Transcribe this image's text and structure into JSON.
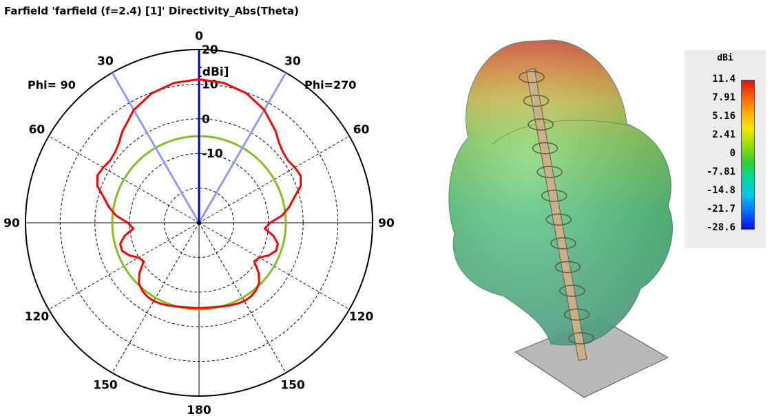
{
  "title": "Farfield 'farfield (f=2.4) [1]' Directivity_Abs(Theta)",
  "polar": {
    "angle_labels": [
      {
        "text": "0",
        "deg": 0
      },
      {
        "text": "30",
        "deg": 30
      },
      {
        "text": "30",
        "deg": -30
      },
      {
        "text": "60",
        "deg": 60
      },
      {
        "text": "60",
        "deg": -60
      },
      {
        "text": "90",
        "deg": 90
      },
      {
        "text": "90",
        "deg": -90
      },
      {
        "text": "120",
        "deg": 120
      },
      {
        "text": "120",
        "deg": -120
      },
      {
        "text": "150",
        "deg": 150
      },
      {
        "text": "150",
        "deg": -150
      },
      {
        "text": "180",
        "deg": 180
      }
    ],
    "radial_ticks": [
      "20",
      "10",
      "0",
      "-10"
    ],
    "unit": "[dBi]",
    "phi_left": "Phi= 90",
    "phi_right": "Phi=270",
    "r_range_db": [
      -30,
      20
    ],
    "colors": {
      "pattern": "#ff0000",
      "reference_circle": "#80c020",
      "main_lobe": "#0000c8",
      "beamwidth": "#8c9cff"
    }
  },
  "chart_data": {
    "type": "polar-line",
    "title": "Farfield 'farfield (f=2.4) [1]' Directivity_Abs(Theta)",
    "unit": "dBi",
    "r_range": [
      -30,
      20
    ],
    "radial_ticks": [
      20,
      10,
      0,
      -10
    ],
    "theta_labels": [
      0,
      30,
      60,
      90,
      120,
      150,
      180
    ],
    "phi_planes": [
      "Phi= 90",
      "Phi=270"
    ],
    "main_lobe_direction_deg": 0,
    "beamwidth_edges_deg": [
      -30,
      30
    ],
    "reference_level_dbi": -5,
    "series": [
      {
        "theta_deg": [
          0,
          10,
          20,
          30,
          40,
          45,
          50,
          55,
          60,
          65,
          70,
          75,
          80,
          85,
          90,
          95,
          100,
          105,
          110,
          115,
          120,
          125,
          130,
          135,
          140,
          145,
          150,
          155,
          160,
          165,
          170,
          175,
          180
        ],
        "directivity_dbi": [
          11.4,
          11.0,
          9.8,
          7.6,
          4.4,
          2.6,
          1.6,
          1.3,
          1.9,
          2.3,
          1.2,
          -1.6,
          -3.6,
          -6.0,
          -9.5,
          -11.0,
          -8.2,
          -6.5,
          -6.4,
          -7.8,
          -9.9,
          -10.6,
          -7.6,
          -5.5,
          -4.5,
          -4.0,
          -3.9,
          -4.2,
          -4.6,
          -5.0,
          -5.3,
          -5.4,
          -5.4
        ]
      }
    ]
  },
  "legend": {
    "unit": "dBi",
    "labels": [
      "11.4",
      "7.91",
      "5.16",
      "2.41",
      "0",
      "-7.81",
      "-14.8",
      "-21.7",
      "-28.6"
    ]
  }
}
